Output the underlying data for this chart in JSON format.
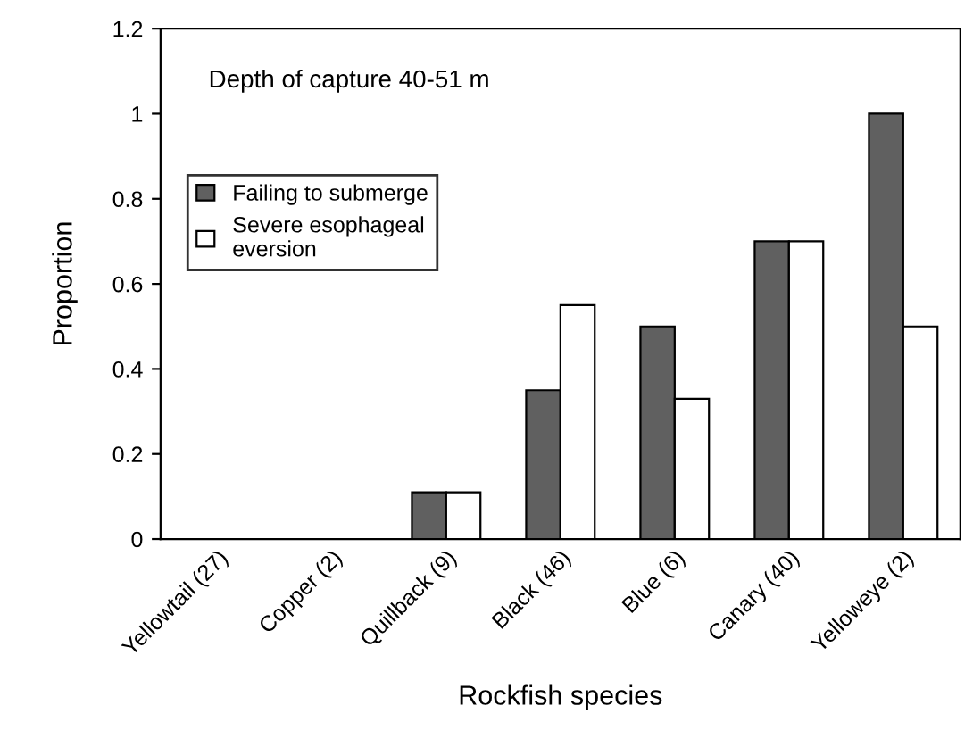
{
  "chart_data": {
    "type": "bar",
    "xlabel": "Rockfish species",
    "ylabel": "Proportion",
    "categories": [
      "Yellowtail (27)",
      "Copper (2)",
      "Quillback (9)",
      "Black (46)",
      "Blue (6)",
      "Canary (40)",
      "Yelloweye (2)"
    ],
    "series": [
      {
        "name": "Failing to submerge",
        "color": "#606060",
        "values": [
          0,
          0,
          0.11,
          0.35,
          0.5,
          0.7,
          1.0
        ]
      },
      {
        "name": "Severe esophageal\neversion",
        "color": "#ffffff",
        "values": [
          0,
          0,
          0.11,
          0.55,
          0.33,
          0.7,
          0.5
        ]
      }
    ],
    "ylim": [
      0,
      1.2
    ],
    "yticks": [
      0,
      0.2,
      0.4,
      0.6,
      0.8,
      1,
      1.2
    ],
    "annotations": [
      "Depth of capture 40-51 m"
    ],
    "legend": "left",
    "grid": false
  }
}
